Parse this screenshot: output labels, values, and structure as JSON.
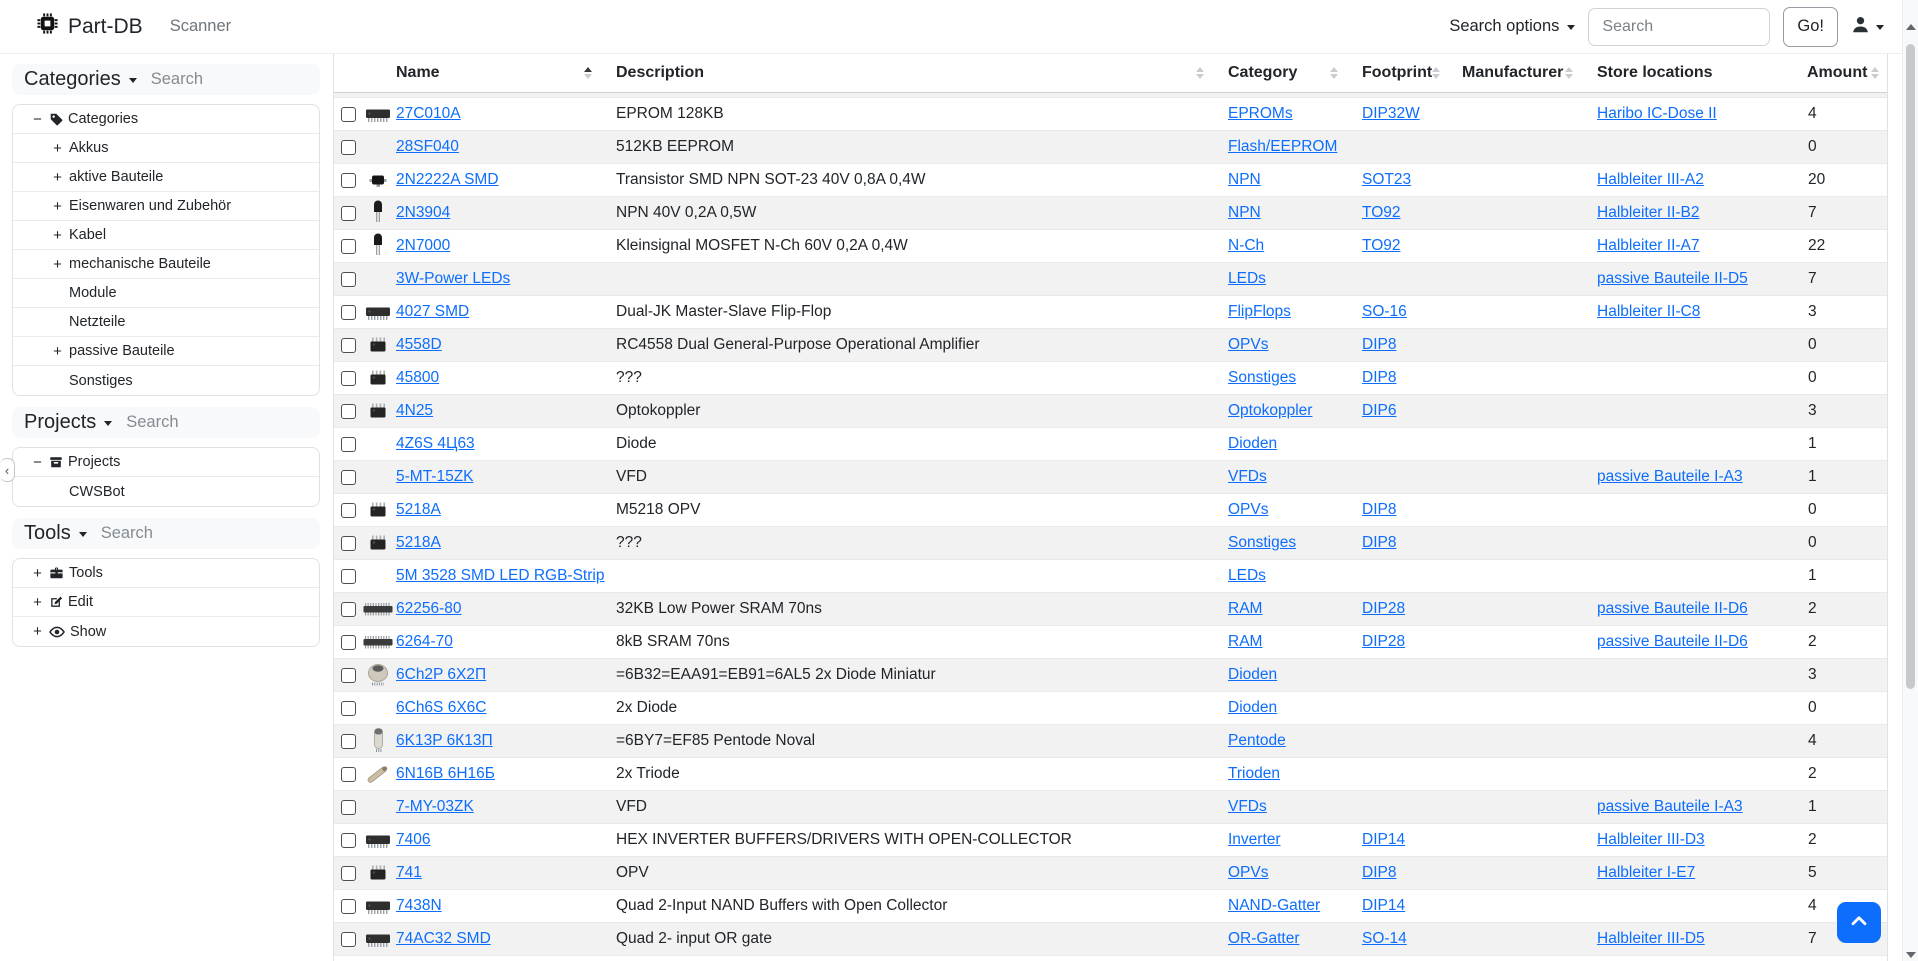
{
  "navbar": {
    "brand": "Part-DB",
    "scanner_label": "Scanner",
    "search_options_label": "Search options",
    "search_placeholder": "Search",
    "go_label": "Go!"
  },
  "sidebar": {
    "collapse_icon": "‹",
    "sections": [
      {
        "title": "Categories",
        "search_placeholder": "Search",
        "items": [
          {
            "toggle": "−",
            "icon": "tag",
            "label": "Categories",
            "level": 0
          },
          {
            "toggle": "+",
            "label": "Akkus",
            "level": 1
          },
          {
            "toggle": "+",
            "label": "aktive Bauteile",
            "level": 1
          },
          {
            "toggle": "+",
            "label": "Eisenwaren und Zubehör",
            "level": 1
          },
          {
            "toggle": "+",
            "label": "Kabel",
            "level": 1
          },
          {
            "toggle": "+",
            "label": "mechanische Bauteile",
            "level": 1
          },
          {
            "toggle": "",
            "label": "Module",
            "level": 1
          },
          {
            "toggle": "",
            "label": "Netzteile",
            "level": 1
          },
          {
            "toggle": "+",
            "label": "passive Bauteile",
            "level": 1
          },
          {
            "toggle": "",
            "label": "Sonstiges",
            "level": 1
          }
        ]
      },
      {
        "title": "Projects",
        "search_placeholder": "Search",
        "items": [
          {
            "toggle": "−",
            "icon": "box",
            "label": "Projects",
            "level": 0
          },
          {
            "toggle": "",
            "label": "CWSBot",
            "level": 1
          }
        ]
      },
      {
        "title": "Tools",
        "search_placeholder": "Search",
        "items": [
          {
            "toggle": "+",
            "icon": "toolbox",
            "label": "Tools",
            "level": 0
          },
          {
            "toggle": "+",
            "icon": "edit",
            "label": "Edit",
            "level": 0
          },
          {
            "toggle": "+",
            "icon": "eye",
            "label": "Show",
            "level": 0
          }
        ]
      }
    ]
  },
  "table": {
    "columns": [
      {
        "label": "Name",
        "sort": "asc"
      },
      {
        "label": "Description",
        "sort": "unsorted"
      },
      {
        "label": "Category",
        "sort": "unsorted"
      },
      {
        "label": "Footprint",
        "sort": "unsorted"
      },
      {
        "label": "Manufacturer",
        "sort": "unsorted"
      },
      {
        "label": "Store locations",
        "sort": "none"
      },
      {
        "label": "Amount",
        "sort": "unsorted"
      }
    ],
    "rows": [
      {
        "image": "dip-wide",
        "name": "27C010A",
        "description": "EPROM 128KB",
        "category": "EPROMs",
        "footprint": "DIP32W",
        "manufacturer": "",
        "store_location": "Haribo IC-Dose II",
        "amount": "4"
      },
      {
        "image": "",
        "name": "28SF040",
        "description": "512KB EEPROM",
        "category": "Flash/EEPROM",
        "footprint": "",
        "manufacturer": "",
        "store_location": "",
        "amount": "0"
      },
      {
        "image": "sot23",
        "name": "2N2222A SMD",
        "description": "Transistor SMD NPN SOT-23 40V 0,8A 0,4W",
        "category": "NPN",
        "footprint": "SOT23",
        "manufacturer": "",
        "store_location": "Halbleiter III-A2",
        "amount": "20"
      },
      {
        "image": "to92",
        "name": "2N3904",
        "description": "NPN 40V 0,2A 0,5W",
        "category": "NPN",
        "footprint": "TO92",
        "manufacturer": "",
        "store_location": "Halbleiter II-B2",
        "amount": "7"
      },
      {
        "image": "to92",
        "name": "2N7000",
        "description": "Kleinsignal MOSFET N-Ch 60V 0,2A 0,4W",
        "category": "N-Ch",
        "footprint": "TO92",
        "manufacturer": "",
        "store_location": "Halbleiter II-A7",
        "amount": "22"
      },
      {
        "image": "",
        "name": "3W-Power LEDs",
        "description": "",
        "category": "LEDs",
        "footprint": "",
        "manufacturer": "",
        "store_location": "passive Bauteile II-D5",
        "amount": "7"
      },
      {
        "image": "dip-wide",
        "name": "4027 SMD",
        "description": "Dual-JK Master-Slave Flip-Flop",
        "category": "FlipFlops",
        "footprint": "SO-16",
        "manufacturer": "",
        "store_location": "Halbleiter II-C8",
        "amount": "3"
      },
      {
        "image": "dip8",
        "name": "4558D",
        "description": "RC4558 Dual General-Purpose Operational Amplifier",
        "category": "OPVs",
        "footprint": "DIP8",
        "manufacturer": "",
        "store_location": "",
        "amount": "0"
      },
      {
        "image": "dip8",
        "name": "45800",
        "description": "???",
        "category": "Sonstiges",
        "footprint": "DIP8",
        "manufacturer": "",
        "store_location": "",
        "amount": "0"
      },
      {
        "image": "dip8",
        "name": "4N25",
        "description": "Optokoppler",
        "category": "Optokoppler",
        "footprint": "DIP6",
        "manufacturer": "",
        "store_location": "",
        "amount": "3"
      },
      {
        "image": "",
        "name": "4Z6S 4Ц63",
        "description": "Diode",
        "category": "Dioden",
        "footprint": "",
        "manufacturer": "",
        "store_location": "",
        "amount": "1"
      },
      {
        "image": "",
        "name": "5-MT-15ZK",
        "description": "VFD",
        "category": "VFDs",
        "footprint": "",
        "manufacturer": "",
        "store_location": "passive Bauteile I-A3",
        "amount": "1"
      },
      {
        "image": "dip8",
        "name": "5218A",
        "description": "M5218 OPV",
        "category": "OPVs",
        "footprint": "DIP8",
        "manufacturer": "",
        "store_location": "",
        "amount": "0"
      },
      {
        "image": "dip8",
        "name": "5218A",
        "description": "???",
        "category": "Sonstiges",
        "footprint": "DIP8",
        "manufacturer": "",
        "store_location": "",
        "amount": "0"
      },
      {
        "image": "",
        "name": "5M 3528 SMD LED RGB-Strip",
        "description": "",
        "category": "LEDs",
        "footprint": "",
        "manufacturer": "",
        "store_location": "",
        "amount": "1"
      },
      {
        "image": "dip-long",
        "name": "62256-80",
        "description": "32KB Low Power SRAM 70ns",
        "category": "RAM",
        "footprint": "DIP28",
        "manufacturer": "",
        "store_location": "passive Bauteile II-D6",
        "amount": "2"
      },
      {
        "image": "dip-long",
        "name": "6264-70",
        "description": "8kB SRAM 70ns",
        "category": "RAM",
        "footprint": "DIP28",
        "manufacturer": "",
        "store_location": "passive Bauteile II-D6",
        "amount": "2"
      },
      {
        "image": "tube-small",
        "name": "6Ch2P 6Х2П",
        "description": "=6B32=EAA91=EB91=6AL5 2x Diode Miniatur",
        "category": "Dioden",
        "footprint": "",
        "manufacturer": "",
        "store_location": "",
        "amount": "3"
      },
      {
        "image": "",
        "name": "6Ch6S 6X6C",
        "description": "2x Diode",
        "category": "Dioden",
        "footprint": "",
        "manufacturer": "",
        "store_location": "",
        "amount": "0"
      },
      {
        "image": "tube",
        "name": "6K13P 6К13П",
        "description": "=6BY7=EF85 Pentode Noval",
        "category": "Pentode",
        "footprint": "",
        "manufacturer": "",
        "store_location": "",
        "amount": "4"
      },
      {
        "image": "tube-diagonal",
        "name": "6N16B 6Н16Б",
        "description": "2x Triode",
        "category": "Trioden",
        "footprint": "",
        "manufacturer": "",
        "store_location": "",
        "amount": "2"
      },
      {
        "image": "",
        "name": "7-MY-03ZK",
        "description": "VFD",
        "category": "VFDs",
        "footprint": "",
        "manufacturer": "",
        "store_location": "passive Bauteile I-A3",
        "amount": "1"
      },
      {
        "image": "dip-wide",
        "name": "7406",
        "description": "HEX INVERTER BUFFERS/DRIVERS WITH OPEN-COLLECTOR",
        "category": "Inverter",
        "footprint": "DIP14",
        "manufacturer": "",
        "store_location": "Halbleiter III-D3",
        "amount": "2"
      },
      {
        "image": "dip8",
        "name": "741",
        "description": "OPV",
        "category": "OPVs",
        "footprint": "DIP8",
        "manufacturer": "",
        "store_location": "Halbleiter I-E7",
        "amount": "5"
      },
      {
        "image": "dip-wide",
        "name": "7438N",
        "description": "Quad 2-Input NAND Buffers with Open Collector",
        "category": "NAND-Gatter",
        "footprint": "DIP14",
        "manufacturer": "",
        "store_location": "",
        "amount": "4"
      },
      {
        "image": "so14",
        "name": "74AC32 SMD",
        "description": "Quad 2- input OR gate",
        "category": "OR-Gatter",
        "footprint": "SO-14",
        "manufacturer": "",
        "store_location": "Halbleiter III-D5",
        "amount": "7"
      }
    ]
  },
  "colors": {
    "accent": "#0d6efd",
    "link": "#0d6efd",
    "stripe": "#f2f2f2"
  }
}
